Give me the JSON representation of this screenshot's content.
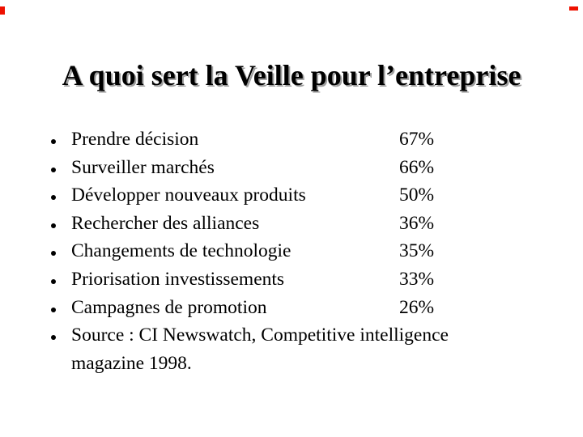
{
  "slide": {
    "title": "A quoi sert la Veille pour l’entreprise",
    "colors": {
      "background": "#ffffff",
      "text": "#000000",
      "title_shadow": "#9e9e9e",
      "corner_mark": "#ee1100"
    },
    "bullet_items": [
      {
        "label": "Prendre décision",
        "value": "67%"
      },
      {
        "label": "Surveiller marchés",
        "value": "66%"
      },
      {
        "label": "Développer nouveaux produits",
        "value": "50%"
      },
      {
        "label": "Rechercher des alliances",
        "value": "36%"
      },
      {
        "label": "Changements de technologie",
        "value": "35%"
      },
      {
        "label": "Priorisation investissements",
        "value": "33%"
      },
      {
        "label": "Campagnes de promotion",
        "value": "26%"
      }
    ],
    "source_item": {
      "line1": "Source : CI Newswatch, Competitive intelligence",
      "line2": "magazine 1998."
    }
  }
}
